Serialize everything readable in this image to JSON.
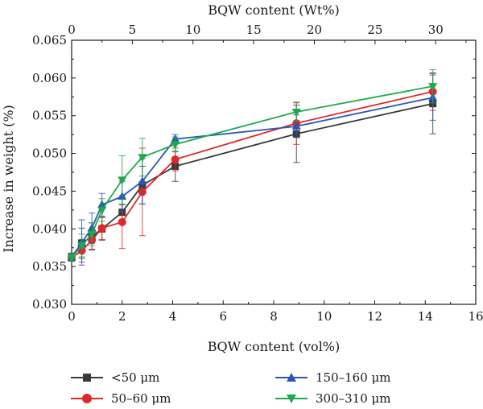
{
  "chart_data": {
    "type": "line",
    "xlabel": "BQW content (vol%)",
    "x2label": "BQW content (Wt%)",
    "ylabel": "Increase in weight (%)",
    "xlim": [
      0,
      16
    ],
    "x2lim": [
      0,
      33.3
    ],
    "ylim": [
      0.03,
      0.065
    ],
    "xticks": [
      "0",
      "2",
      "4",
      "6",
      "8",
      "10",
      "12",
      "14",
      "16"
    ],
    "x2ticks": [
      "0",
      "5",
      "10",
      "15",
      "20",
      "25",
      "30"
    ],
    "yticks": [
      "0.030",
      "0.035",
      "0.040",
      "0.045",
      "0.050",
      "0.055",
      "0.060",
      "0.065"
    ],
    "grid": false,
    "legend_position": "below",
    "series": [
      {
        "name": "<50 μm",
        "color": "#3a3a3a",
        "marker": "square",
        "x": [
          0,
          0.4,
          0.8,
          1.2,
          2.0,
          2.8,
          4.1,
          8.9,
          14.3
        ],
        "y": [
          0.0363,
          0.0381,
          0.039,
          0.04,
          0.0422,
          0.0458,
          0.0483,
          0.0526,
          0.0566
        ],
        "err": [
          0.0005,
          0.002,
          0.0018,
          0.0015,
          0.001,
          0.0025,
          0.002,
          0.0038,
          0.004
        ]
      },
      {
        "name": "50–60 μm",
        "color": "#e0272a",
        "marker": "circle",
        "x": [
          0,
          0.4,
          0.8,
          1.2,
          2.0,
          2.8,
          4.1,
          8.9,
          14.3
        ],
        "y": [
          0.0362,
          0.0371,
          0.0385,
          0.0401,
          0.0409,
          0.0449,
          0.0492,
          0.054,
          0.0582
        ],
        "err": [
          0.0005,
          0.0015,
          0.0012,
          0.0015,
          0.0035,
          0.0058,
          0.0015,
          0.0028,
          0.0025
        ]
      },
      {
        "name": "150–160 μm",
        "color": "#2b56b8",
        "marker": "triangle-up",
        "x": [
          0,
          0.4,
          0.8,
          1.2,
          2.0,
          2.8,
          4.1,
          8.9,
          14.3
        ],
        "y": [
          0.0362,
          0.0382,
          0.0401,
          0.0432,
          0.0443,
          0.0463,
          0.0519,
          0.0536,
          0.0574
        ],
        "err": [
          0.0005,
          0.003,
          0.002,
          0.0015,
          0.002,
          0.003,
          0.0006,
          0.0015,
          0.003
        ]
      },
      {
        "name": "300–310 μm",
        "color": "#1faa4a",
        "marker": "triangle-down",
        "x": [
          0,
          0.4,
          0.8,
          1.2,
          2.0,
          2.8,
          4.1,
          8.9,
          14.3
        ],
        "y": [
          0.0362,
          0.0378,
          0.0393,
          0.0425,
          0.0465,
          0.0495,
          0.0512,
          0.0555,
          0.0589
        ],
        "err": [
          0.0005,
          0.0015,
          0.0015,
          0.0015,
          0.0032,
          0.0025,
          0.001,
          0.0012,
          0.0022
        ]
      }
    ]
  }
}
